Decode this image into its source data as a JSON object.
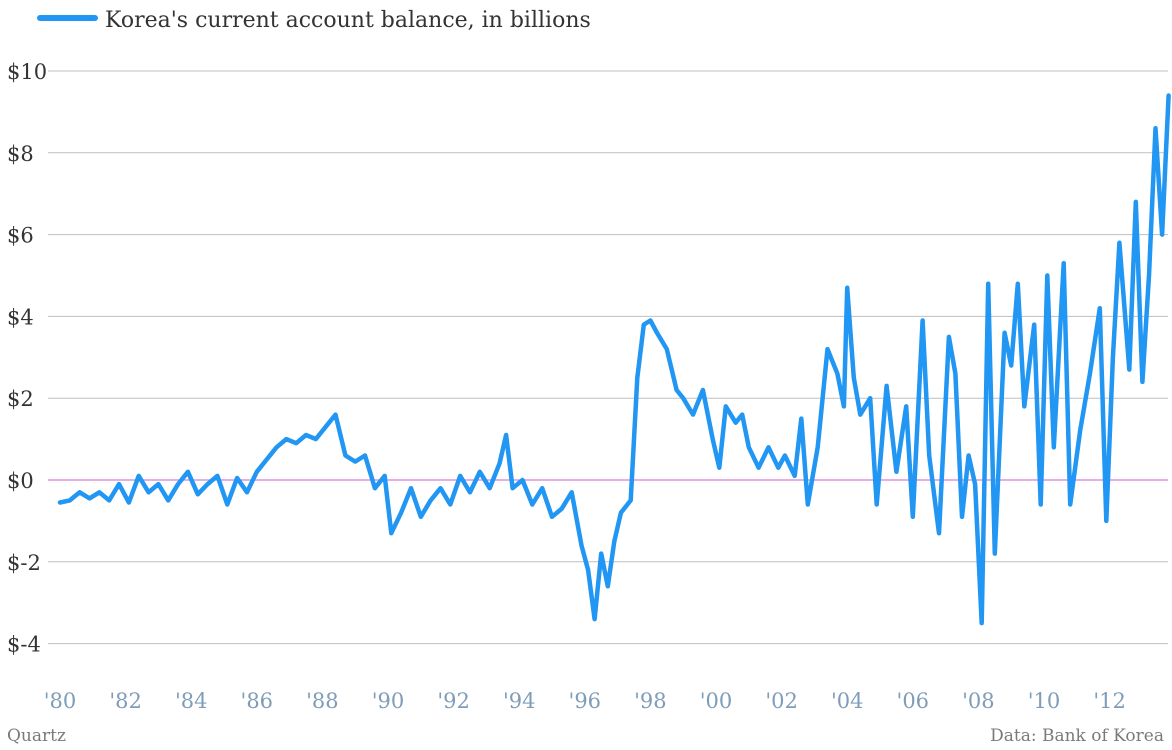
{
  "chart_data": {
    "type": "line",
    "title": "",
    "xlabel": "",
    "ylabel": "",
    "xlim": [
      1980,
      2013.6
    ],
    "ylim": [
      -5,
      10.5
    ],
    "grid": true,
    "legend": "top-left",
    "x_tick_labels": [
      "'80",
      "'82",
      "'84",
      "'86",
      "'88",
      "'90",
      "'92",
      "'94",
      "'96",
      "'98",
      "'00",
      "'02",
      "'04",
      "'06",
      "'08",
      "'10",
      "'12"
    ],
    "y_tick_values": [
      10,
      8,
      6,
      4,
      2,
      0,
      -2,
      -4
    ],
    "y_tick_labels": [
      "$10",
      "$8",
      "$6",
      "$4",
      "$2",
      "$0",
      "$-2",
      "$-4"
    ],
    "reference_line": 0,
    "series": [
      {
        "name": "Korea's current account balance, in billions",
        "color": "#2196f3",
        "points": [
          [
            1980.0,
            -0.55
          ],
          [
            1980.3,
            -0.5
          ],
          [
            1980.6,
            -0.3
          ],
          [
            1980.9,
            -0.45
          ],
          [
            1981.2,
            -0.3
          ],
          [
            1981.5,
            -0.5
          ],
          [
            1981.8,
            -0.1
          ],
          [
            1982.1,
            -0.55
          ],
          [
            1982.4,
            0.1
          ],
          [
            1982.7,
            -0.3
          ],
          [
            1983.0,
            -0.1
          ],
          [
            1983.3,
            -0.5
          ],
          [
            1983.6,
            -0.1
          ],
          [
            1983.9,
            0.2
          ],
          [
            1984.2,
            -0.35
          ],
          [
            1984.5,
            -0.1
          ],
          [
            1984.8,
            0.1
          ],
          [
            1985.1,
            -0.6
          ],
          [
            1985.4,
            0.05
          ],
          [
            1985.7,
            -0.3
          ],
          [
            1986.0,
            0.2
          ],
          [
            1986.3,
            0.5
          ],
          [
            1986.6,
            0.8
          ],
          [
            1986.9,
            1.0
          ],
          [
            1987.2,
            0.9
          ],
          [
            1987.5,
            1.1
          ],
          [
            1987.8,
            1.0
          ],
          [
            1988.1,
            1.3
          ],
          [
            1988.4,
            1.6
          ],
          [
            1988.7,
            0.6
          ],
          [
            1989.0,
            0.45
          ],
          [
            1989.3,
            0.6
          ],
          [
            1989.6,
            -0.2
          ],
          [
            1989.9,
            0.1
          ],
          [
            1990.1,
            -1.3
          ],
          [
            1990.4,
            -0.8
          ],
          [
            1990.7,
            -0.2
          ],
          [
            1991.0,
            -0.9
          ],
          [
            1991.3,
            -0.5
          ],
          [
            1991.6,
            -0.2
          ],
          [
            1991.9,
            -0.6
          ],
          [
            1992.2,
            0.1
          ],
          [
            1992.5,
            -0.3
          ],
          [
            1992.8,
            0.2
          ],
          [
            1993.1,
            -0.2
          ],
          [
            1993.4,
            0.4
          ],
          [
            1993.6,
            1.1
          ],
          [
            1993.8,
            -0.2
          ],
          [
            1994.1,
            0.0
          ],
          [
            1994.4,
            -0.6
          ],
          [
            1994.7,
            -0.2
          ],
          [
            1995.0,
            -0.9
          ],
          [
            1995.3,
            -0.7
          ],
          [
            1995.6,
            -0.3
          ],
          [
            1995.9,
            -1.6
          ],
          [
            1996.1,
            -2.2
          ],
          [
            1996.3,
            -3.4
          ],
          [
            1996.5,
            -1.8
          ],
          [
            1996.7,
            -2.6
          ],
          [
            1996.9,
            -1.5
          ],
          [
            1997.1,
            -0.8
          ],
          [
            1997.4,
            -0.5
          ],
          [
            1997.6,
            2.5
          ],
          [
            1997.8,
            3.8
          ],
          [
            1998.0,
            3.9
          ],
          [
            1998.2,
            3.6
          ],
          [
            1998.5,
            3.2
          ],
          [
            1998.8,
            2.2
          ],
          [
            1999.0,
            2.0
          ],
          [
            1999.3,
            1.6
          ],
          [
            1999.6,
            2.2
          ],
          [
            1999.9,
            1.0
          ],
          [
            2000.1,
            0.3
          ],
          [
            2000.3,
            1.8
          ],
          [
            2000.6,
            1.4
          ],
          [
            2000.8,
            1.6
          ],
          [
            2001.0,
            0.8
          ],
          [
            2001.3,
            0.3
          ],
          [
            2001.6,
            0.8
          ],
          [
            2001.9,
            0.3
          ],
          [
            2002.1,
            0.6
          ],
          [
            2002.4,
            0.1
          ],
          [
            2002.6,
            1.5
          ],
          [
            2002.8,
            -0.6
          ],
          [
            2003.1,
            0.8
          ],
          [
            2003.4,
            3.2
          ],
          [
            2003.7,
            2.6
          ],
          [
            2003.9,
            1.8
          ],
          [
            2004.0,
            4.7
          ],
          [
            2004.2,
            2.5
          ],
          [
            2004.4,
            1.6
          ],
          [
            2004.7,
            2.0
          ],
          [
            2004.9,
            -0.6
          ],
          [
            2005.2,
            2.3
          ],
          [
            2005.5,
            0.2
          ],
          [
            2005.8,
            1.8
          ],
          [
            2006.0,
            -0.9
          ],
          [
            2006.3,
            3.9
          ],
          [
            2006.5,
            0.6
          ],
          [
            2006.8,
            -1.3
          ],
          [
            2007.1,
            3.5
          ],
          [
            2007.3,
            2.6
          ],
          [
            2007.5,
            -0.9
          ],
          [
            2007.7,
            0.6
          ],
          [
            2007.9,
            -0.1
          ],
          [
            2008.1,
            -3.5
          ],
          [
            2008.3,
            4.8
          ],
          [
            2008.5,
            -1.8
          ],
          [
            2008.8,
            3.6
          ],
          [
            2009.0,
            2.8
          ],
          [
            2009.2,
            4.8
          ],
          [
            2009.4,
            1.8
          ],
          [
            2009.7,
            3.8
          ],
          [
            2009.9,
            -0.6
          ],
          [
            2010.1,
            5.0
          ],
          [
            2010.3,
            0.8
          ],
          [
            2010.6,
            5.3
          ],
          [
            2010.8,
            -0.6
          ],
          [
            2011.1,
            1.2
          ],
          [
            2011.4,
            2.6
          ],
          [
            2011.7,
            4.2
          ],
          [
            2011.9,
            -1.0
          ],
          [
            2012.1,
            3.0
          ],
          [
            2012.3,
            5.8
          ],
          [
            2012.6,
            2.7
          ],
          [
            2012.8,
            6.8
          ],
          [
            2013.0,
            2.4
          ],
          [
            2013.2,
            5.0
          ],
          [
            2013.4,
            8.6
          ],
          [
            2013.6,
            6.0
          ],
          [
            2013.8,
            9.4
          ]
        ]
      }
    ]
  },
  "footer": {
    "source_left": "Quartz",
    "source_right": "Data: Bank of Korea"
  }
}
